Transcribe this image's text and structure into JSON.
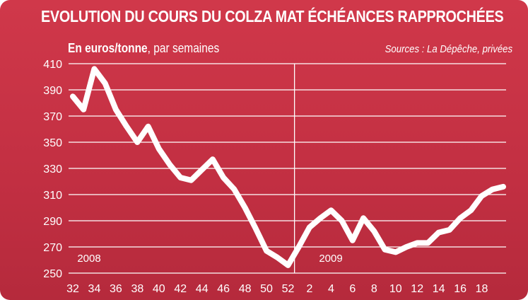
{
  "chart_data": {
    "type": "line",
    "title": "EVOLUTION DU COURS DU COLZA MAT  ÉCHÉANCES RAPPROCHÉES",
    "unit_bold": "En euros/tonne",
    "unit_rest": ", par semaines",
    "sources": "Sources : La Dépêche, privées",
    "ylim": [
      250,
      410
    ],
    "yticks": [
      "410",
      "390",
      "370",
      "350",
      "330",
      "310",
      "290",
      "270",
      "250"
    ],
    "xtick_labels": [
      "32",
      "34",
      "36",
      "38",
      "40",
      "42",
      "44",
      "46",
      "48",
      "50",
      "52",
      "2",
      "4",
      "6",
      "8",
      "10",
      "12",
      "14",
      "16",
      "18"
    ],
    "years": [
      "2008",
      "2009"
    ],
    "grid": true,
    "series": [
      {
        "x": [
          0,
          1,
          2,
          3,
          4,
          5,
          6,
          7,
          8,
          9,
          10,
          11,
          12,
          13,
          14,
          15,
          16,
          17,
          18,
          19,
          20,
          21,
          22,
          23,
          24,
          25,
          26,
          27,
          28,
          29,
          30,
          31,
          32,
          33,
          34,
          35,
          36,
          37,
          38,
          39,
          40
        ],
        "values": [
          385,
          375,
          406,
          395,
          375,
          362,
          350,
          362,
          345,
          333,
          323,
          321,
          329,
          337,
          323,
          314,
          300,
          284,
          267,
          262,
          256,
          270,
          285,
          292,
          298,
          290,
          275,
          292,
          282,
          268,
          266,
          270,
          273,
          273,
          281,
          283,
          292,
          298,
          309,
          314,
          316
        ]
      }
    ],
    "colors": {
      "background": "#c8334a",
      "line": "#ffffff",
      "grid": "#ffffff"
    }
  }
}
